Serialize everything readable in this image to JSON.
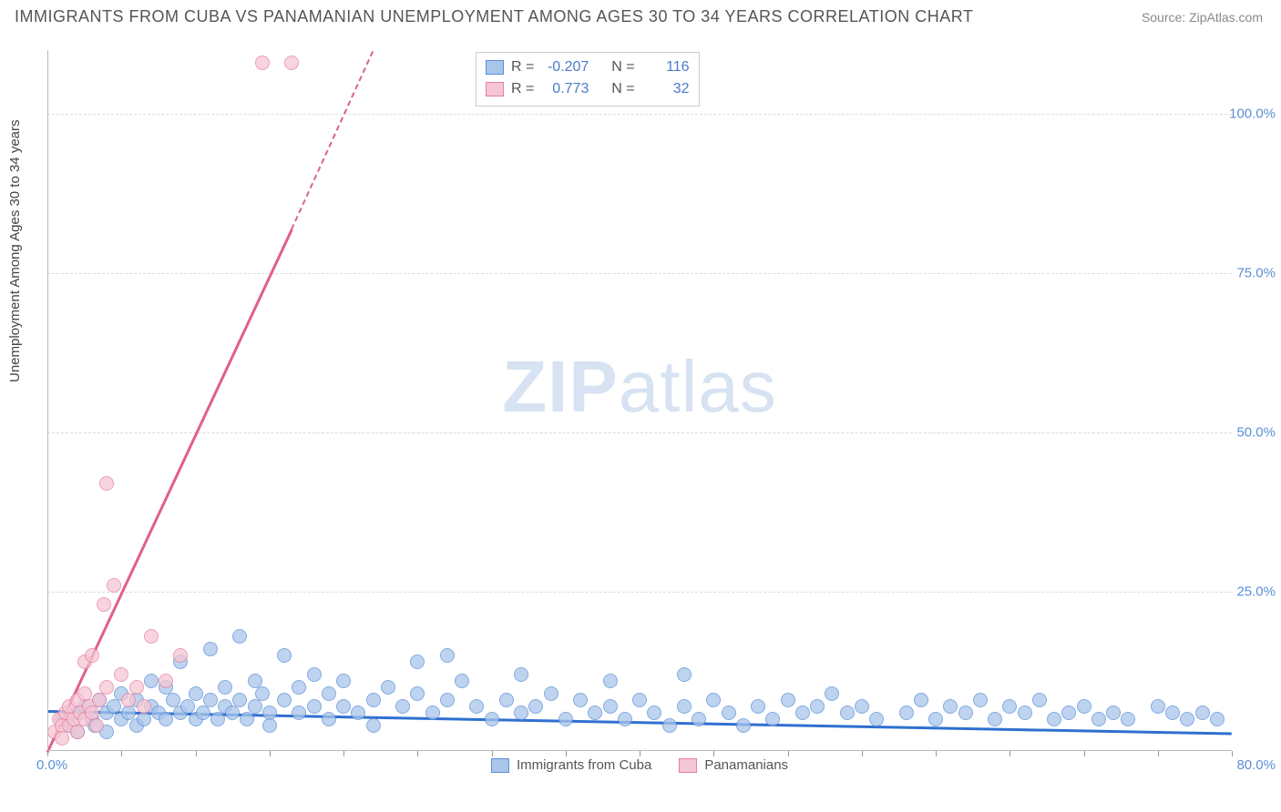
{
  "header": {
    "title": "IMMIGRANTS FROM CUBA VS PANAMANIAN UNEMPLOYMENT AMONG AGES 30 TO 34 YEARS CORRELATION CHART",
    "source": "Source: ZipAtlas.com"
  },
  "chart": {
    "type": "scatter",
    "ylabel": "Unemployment Among Ages 30 to 34 years",
    "xlim": [
      0,
      80
    ],
    "ylim": [
      0,
      110
    ],
    "xticks": [
      0,
      5,
      10,
      15,
      20,
      25,
      30,
      35,
      40,
      45,
      50,
      55,
      60,
      65,
      70,
      75,
      80
    ],
    "xtick_labels": {
      "left": "0.0%",
      "right": "80.0%"
    },
    "yticks": [
      25,
      50,
      75,
      100
    ],
    "ytick_labels": [
      "25.0%",
      "50.0%",
      "75.0%",
      "100.0%"
    ],
    "background_color": "#ffffff",
    "grid_color": "#dcdcdc",
    "axis_color": "#bbbbbb",
    "tick_label_color": "#5b8fd6",
    "label_fontsize": 15,
    "title_fontsize": 18,
    "marker_radius": 8,
    "marker_stroke_width": 1.5,
    "watermark": {
      "text_bold": "ZIP",
      "text_light": "atlas",
      "color": "#b8cce8"
    }
  },
  "series": [
    {
      "name": "Immigrants from Cuba",
      "color_fill": "#a9c5ea",
      "color_stroke": "#5b8fd6",
      "R": "-0.207",
      "N": "116",
      "trend": {
        "x1": 0,
        "y1": 6.5,
        "x2": 80,
        "y2": 3.0,
        "color": "#2f6fd0",
        "width": 3
      },
      "points": [
        [
          1,
          5
        ],
        [
          1.5,
          4
        ],
        [
          2,
          6
        ],
        [
          2,
          3
        ],
        [
          2.5,
          7
        ],
        [
          3,
          5
        ],
        [
          3.2,
          4
        ],
        [
          3.5,
          8
        ],
        [
          4,
          6
        ],
        [
          4,
          3
        ],
        [
          4.5,
          7
        ],
        [
          5,
          5
        ],
        [
          5,
          9
        ],
        [
          5.5,
          6
        ],
        [
          6,
          8
        ],
        [
          6,
          4
        ],
        [
          6.5,
          5
        ],
        [
          7,
          7
        ],
        [
          7,
          11
        ],
        [
          7.5,
          6
        ],
        [
          8,
          10
        ],
        [
          8,
          5
        ],
        [
          8.5,
          8
        ],
        [
          9,
          6
        ],
        [
          9,
          14
        ],
        [
          9.5,
          7
        ],
        [
          10,
          5
        ],
        [
          10,
          9
        ],
        [
          10.5,
          6
        ],
        [
          11,
          8
        ],
        [
          11,
          16
        ],
        [
          11.5,
          5
        ],
        [
          12,
          7
        ],
        [
          12,
          10
        ],
        [
          12.5,
          6
        ],
        [
          13,
          8
        ],
        [
          13,
          18
        ],
        [
          13.5,
          5
        ],
        [
          14,
          7
        ],
        [
          14,
          11
        ],
        [
          14.5,
          9
        ],
        [
          15,
          6
        ],
        [
          15,
          4
        ],
        [
          16,
          8
        ],
        [
          16,
          15
        ],
        [
          17,
          10
        ],
        [
          17,
          6
        ],
        [
          18,
          7
        ],
        [
          18,
          12
        ],
        [
          19,
          5
        ],
        [
          19,
          9
        ],
        [
          20,
          7
        ],
        [
          20,
          11
        ],
        [
          21,
          6
        ],
        [
          22,
          8
        ],
        [
          22,
          4
        ],
        [
          23,
          10
        ],
        [
          24,
          7
        ],
        [
          25,
          9
        ],
        [
          25,
          14
        ],
        [
          26,
          6
        ],
        [
          27,
          8
        ],
        [
          28,
          11
        ],
        [
          27,
          15
        ],
        [
          29,
          7
        ],
        [
          30,
          5
        ],
        [
          31,
          8
        ],
        [
          32,
          6
        ],
        [
          32,
          12
        ],
        [
          33,
          7
        ],
        [
          34,
          9
        ],
        [
          35,
          5
        ],
        [
          36,
          8
        ],
        [
          37,
          6
        ],
        [
          38,
          7
        ],
        [
          38,
          11
        ],
        [
          39,
          5
        ],
        [
          40,
          8
        ],
        [
          41,
          6
        ],
        [
          42,
          4
        ],
        [
          43,
          7
        ],
        [
          43,
          12
        ],
        [
          44,
          5
        ],
        [
          45,
          8
        ],
        [
          46,
          6
        ],
        [
          47,
          4
        ],
        [
          48,
          7
        ],
        [
          49,
          5
        ],
        [
          50,
          8
        ],
        [
          51,
          6
        ],
        [
          52,
          7
        ],
        [
          53,
          9
        ],
        [
          54,
          6
        ],
        [
          55,
          7
        ],
        [
          56,
          5
        ],
        [
          58,
          6
        ],
        [
          59,
          8
        ],
        [
          60,
          5
        ],
        [
          61,
          7
        ],
        [
          62,
          6
        ],
        [
          63,
          8
        ],
        [
          64,
          5
        ],
        [
          65,
          7
        ],
        [
          66,
          6
        ],
        [
          67,
          8
        ],
        [
          68,
          5
        ],
        [
          69,
          6
        ],
        [
          70,
          7
        ],
        [
          71,
          5
        ],
        [
          72,
          6
        ],
        [
          73,
          5
        ],
        [
          75,
          7
        ],
        [
          76,
          6
        ],
        [
          77,
          5
        ],
        [
          78,
          6
        ],
        [
          79,
          5
        ]
      ]
    },
    {
      "name": "Panamanians",
      "color_fill": "#f5c6d3",
      "color_stroke": "#e87fa0",
      "R": "0.773",
      "N": "32",
      "trend": {
        "x1": 0,
        "y1": 0,
        "x2": 16.5,
        "y2": 82,
        "color": "#e06088",
        "width": 3,
        "dash_x1": 16.5,
        "dash_y1": 82,
        "dash_x2": 22,
        "dash_y2": 110
      },
      "points": [
        [
          0.5,
          3
        ],
        [
          0.8,
          5
        ],
        [
          1,
          4
        ],
        [
          1,
          2
        ],
        [
          1.2,
          6
        ],
        [
          1.5,
          7
        ],
        [
          1.5,
          4
        ],
        [
          1.8,
          5
        ],
        [
          2,
          8
        ],
        [
          2,
          3
        ],
        [
          2.2,
          6
        ],
        [
          2.5,
          9
        ],
        [
          2.5,
          5
        ],
        [
          2.5,
          14
        ],
        [
          2.8,
          7
        ],
        [
          3,
          15
        ],
        [
          3,
          6
        ],
        [
          3.3,
          4
        ],
        [
          3.5,
          8
        ],
        [
          3.8,
          23
        ],
        [
          4,
          10
        ],
        [
          4,
          42
        ],
        [
          4.5,
          26
        ],
        [
          5,
          12
        ],
        [
          5.5,
          8
        ],
        [
          6,
          10
        ],
        [
          6.5,
          7
        ],
        [
          7,
          18
        ],
        [
          8,
          11
        ],
        [
          9,
          15
        ],
        [
          14.5,
          108
        ],
        [
          16.5,
          108
        ]
      ]
    }
  ],
  "stats_box": {
    "rows": [
      {
        "swatch_fill": "#a9c5ea",
        "swatch_stroke": "#5b8fd6",
        "R_label": "R =",
        "R": "-0.207",
        "N_label": "N =",
        "N": "116"
      },
      {
        "swatch_fill": "#f5c6d3",
        "swatch_stroke": "#e87fa0",
        "R_label": "R =",
        "R": "0.773",
        "N_label": "N =",
        "N": "32"
      }
    ]
  },
  "bottom_legend": [
    {
      "swatch_fill": "#a9c5ea",
      "swatch_stroke": "#5b8fd6",
      "label": "Immigrants from Cuba"
    },
    {
      "swatch_fill": "#f5c6d3",
      "swatch_stroke": "#e87fa0",
      "label": "Panamanians"
    }
  ]
}
